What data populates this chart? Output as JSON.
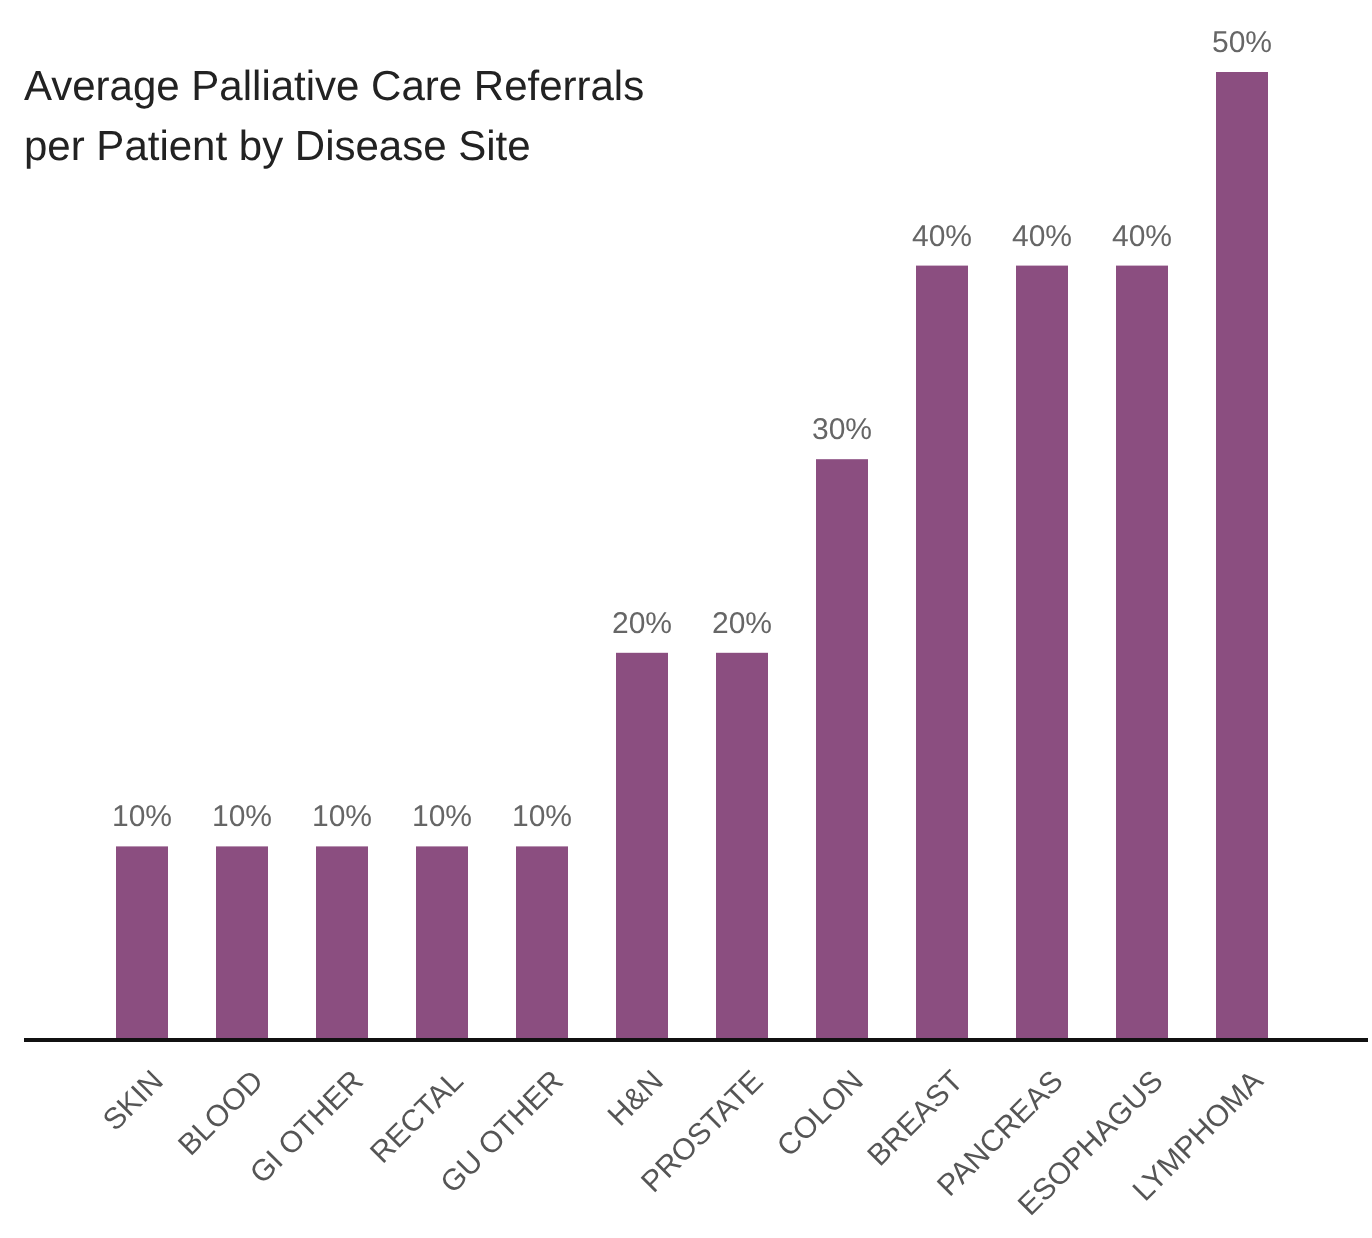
{
  "chart_data": {
    "type": "bar",
    "title": "Average Palliative Care Referrals per Patient by Disease Site",
    "categories": [
      "SKIN",
      "BLOOD",
      "GI OTHER",
      "RECTAL",
      "GU OTHER",
      "H&N",
      "PROSTATE",
      "COLON",
      "BREAST",
      "PANCREAS",
      "ESOPHAGUS",
      "LYMPHOMA"
    ],
    "values": [
      10,
      10,
      10,
      10,
      10,
      20,
      20,
      30,
      40,
      40,
      40,
      50
    ],
    "value_labels": [
      "10%",
      "10%",
      "10%",
      "10%",
      "10%",
      "20%",
      "20%",
      "30%",
      "40%",
      "40%",
      "40%",
      "50%"
    ],
    "color": "#8b4e80"
  }
}
